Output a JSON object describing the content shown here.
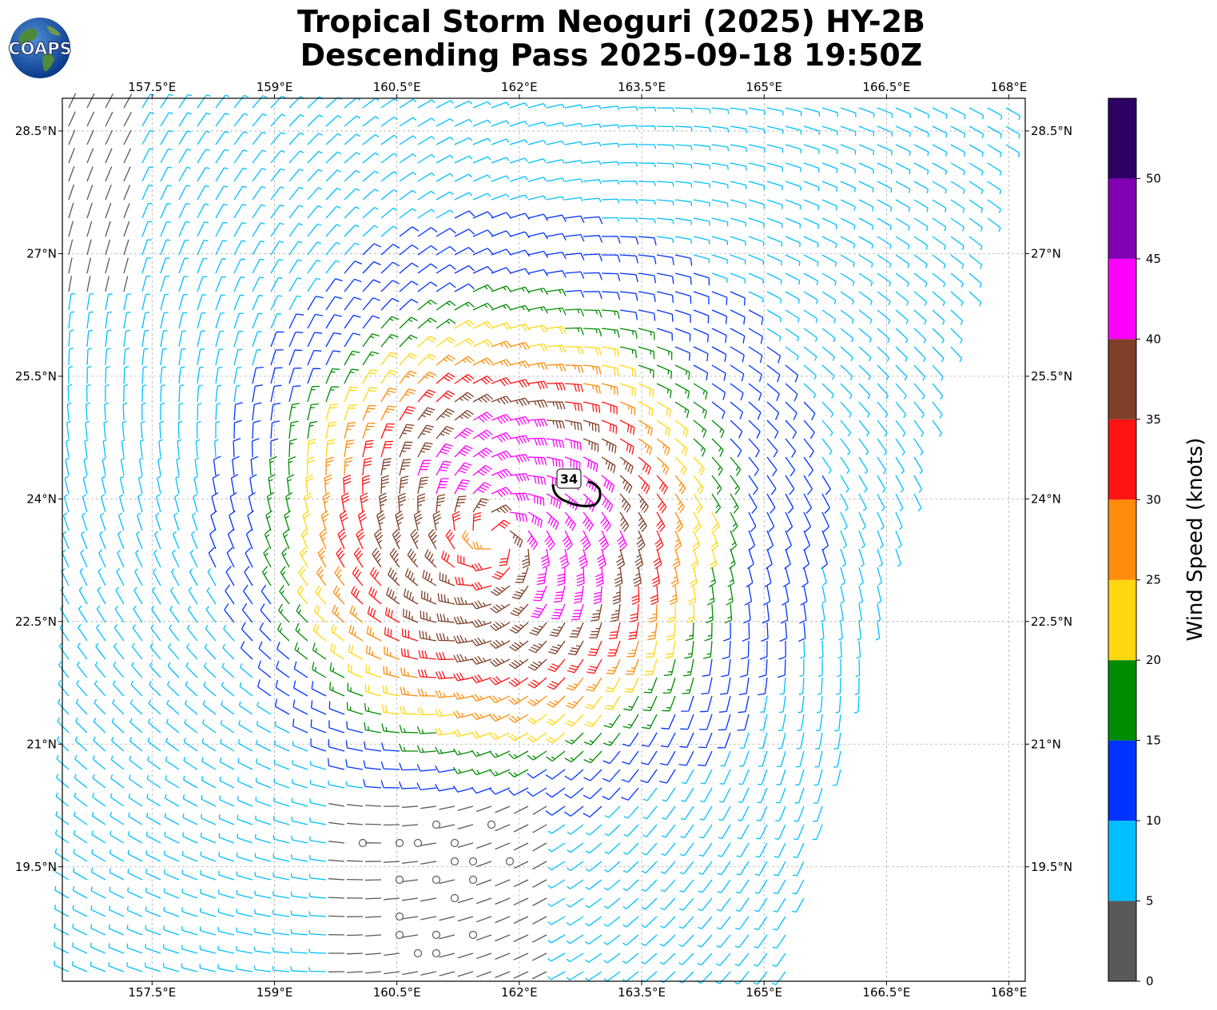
{
  "header": {
    "title_line1": "Tropical Storm Neoguri (2025) HY-2B",
    "title_line2": "Descending Pass 2025-09-18 19:50Z",
    "logo_text": "COAPS"
  },
  "map": {
    "lon_ticks": [
      "157.5°E",
      "159°E",
      "160.5°E",
      "162°E",
      "163.5°E",
      "165°E",
      "166.5°E",
      "168°E"
    ],
    "lat_ticks": [
      "28.5°N",
      "27°N",
      "25.5°N",
      "24°N",
      "22.5°N",
      "21°N",
      "19.5°N"
    ],
    "lon_range": [
      156.4,
      168.2
    ],
    "lat_range": [
      18.1,
      28.9
    ],
    "storm_center": {
      "lon": 161.7,
      "lat": 23.5
    },
    "contour_label": "34",
    "contour_color": "#000000",
    "gridlines": true
  },
  "colorbar": {
    "label": "Wind Speed (knots)",
    "ticks": [
      "0",
      "5",
      "10",
      "15",
      "20",
      "25",
      "30",
      "35",
      "40",
      "45",
      "50"
    ],
    "bins": [
      {
        "min": 0,
        "max": 5,
        "color": "#595959"
      },
      {
        "min": 5,
        "max": 10,
        "color": "#00bfff"
      },
      {
        "min": 10,
        "max": 15,
        "color": "#0033ff"
      },
      {
        "min": 15,
        "max": 20,
        "color": "#008c00"
      },
      {
        "min": 20,
        "max": 25,
        "color": "#ffd70f"
      },
      {
        "min": 25,
        "max": 30,
        "color": "#ff8c0a"
      },
      {
        "min": 30,
        "max": 35,
        "color": "#ff1414"
      },
      {
        "min": 35,
        "max": 40,
        "color": "#7f3f28"
      },
      {
        "min": 40,
        "max": 45,
        "color": "#ff00ff"
      },
      {
        "min": 45,
        "max": 50,
        "color": "#8200b4"
      },
      {
        "min": 50,
        "max": 55,
        "color": "#2d0064"
      }
    ]
  }
}
